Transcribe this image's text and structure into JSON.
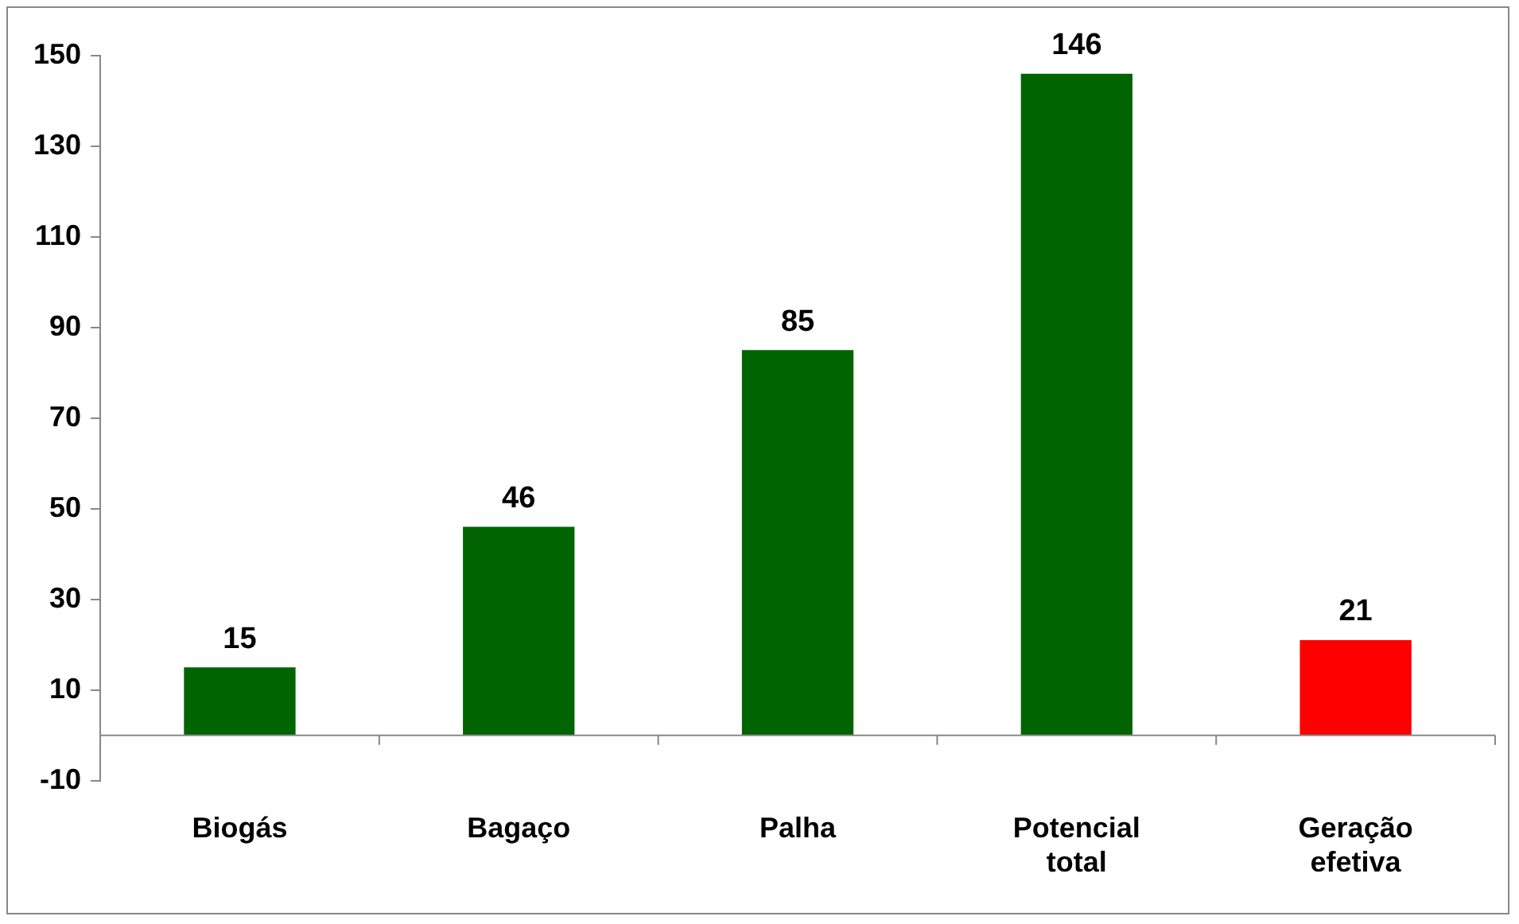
{
  "chart_data": {
    "type": "bar",
    "categories": [
      "Biogás",
      "Bagaço",
      "Palha",
      "Potencial total",
      "Geração efetiva"
    ],
    "values": [
      15,
      46,
      85,
      146,
      21
    ],
    "colors": [
      "#006400",
      "#006400",
      "#006400",
      "#006400",
      "#ff0000"
    ],
    "ylim": [
      -10,
      150
    ],
    "yticks": [
      -10,
      10,
      30,
      50,
      70,
      90,
      110,
      130,
      150
    ],
    "grid": false,
    "legend": false,
    "data_labels": true
  }
}
